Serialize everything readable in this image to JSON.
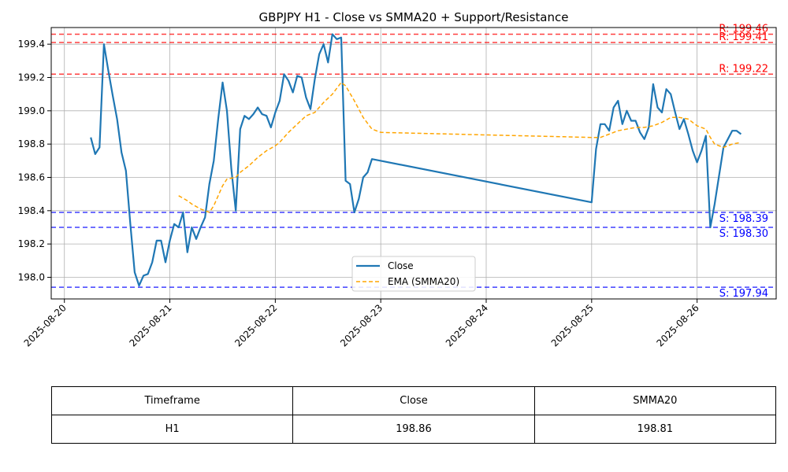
{
  "chart_data": {
    "type": "line",
    "title": "GBPJPY H1 - Close vs SMMA20 + Support/Resistance",
    "xlabel": "",
    "ylabel": "",
    "xlim": [
      "2025-08-19 21:00",
      "2025-08-26 18:00"
    ],
    "ylim": [
      197.87,
      199.5
    ],
    "x_ticks": [
      "2025-08-20",
      "2025-08-21",
      "2025-08-22",
      "2025-08-23",
      "2025-08-24",
      "2025-08-25",
      "2025-08-26"
    ],
    "y_ticks": [
      "198.0",
      "198.2",
      "198.4",
      "198.6",
      "198.8",
      "199.0",
      "199.2",
      "199.4"
    ],
    "grid": true,
    "legend_position": "lower-center",
    "series": [
      {
        "name": "Close",
        "color": "#1f77b4",
        "style": "solid",
        "points": [
          [
            "2025-08-20 06:00",
            198.84
          ],
          [
            "2025-08-20 07:00",
            198.74
          ],
          [
            "2025-08-20 08:00",
            198.78
          ],
          [
            "2025-08-20 09:00",
            199.4
          ],
          [
            "2025-08-20 10:00",
            199.24
          ],
          [
            "2025-08-20 11:00",
            199.09
          ],
          [
            "2025-08-20 12:00",
            198.95
          ],
          [
            "2025-08-20 13:00",
            198.75
          ],
          [
            "2025-08-20 14:00",
            198.64
          ],
          [
            "2025-08-20 15:00",
            198.32
          ],
          [
            "2025-08-20 16:00",
            198.03
          ],
          [
            "2025-08-20 17:00",
            197.95
          ],
          [
            "2025-08-20 18:00",
            198.01
          ],
          [
            "2025-08-20 19:00",
            198.02
          ],
          [
            "2025-08-20 20:00",
            198.09
          ],
          [
            "2025-08-20 21:00",
            198.22
          ],
          [
            "2025-08-20 22:00",
            198.22
          ],
          [
            "2025-08-20 23:00",
            198.09
          ],
          [
            "2025-08-21 00:00",
            198.22
          ],
          [
            "2025-08-21 01:00",
            198.32
          ],
          [
            "2025-08-21 02:00",
            198.3
          ],
          [
            "2025-08-21 03:00",
            198.39
          ],
          [
            "2025-08-21 04:00",
            198.15
          ],
          [
            "2025-08-21 05:00",
            198.3
          ],
          [
            "2025-08-21 06:00",
            198.23
          ],
          [
            "2025-08-21 07:00",
            198.3
          ],
          [
            "2025-08-21 08:00",
            198.36
          ],
          [
            "2025-08-21 09:00",
            198.56
          ],
          [
            "2025-08-21 10:00",
            198.7
          ],
          [
            "2025-08-21 11:00",
            198.95
          ],
          [
            "2025-08-21 12:00",
            199.17
          ],
          [
            "2025-08-21 13:00",
            199.0
          ],
          [
            "2025-08-21 14:00",
            198.65
          ],
          [
            "2025-08-21 15:00",
            198.4
          ],
          [
            "2025-08-21 16:00",
            198.89
          ],
          [
            "2025-08-21 17:00",
            198.97
          ],
          [
            "2025-08-21 18:00",
            198.95
          ],
          [
            "2025-08-21 19:00",
            198.98
          ],
          [
            "2025-08-21 20:00",
            199.02
          ],
          [
            "2025-08-21 21:00",
            198.98
          ],
          [
            "2025-08-21 22:00",
            198.97
          ],
          [
            "2025-08-21 23:00",
            198.9
          ],
          [
            "2025-08-22 00:00",
            198.99
          ],
          [
            "2025-08-22 01:00",
            199.06
          ],
          [
            "2025-08-22 02:00",
            199.22
          ],
          [
            "2025-08-22 03:00",
            199.18
          ],
          [
            "2025-08-22 04:00",
            199.11
          ],
          [
            "2025-08-22 05:00",
            199.21
          ],
          [
            "2025-08-22 06:00",
            199.2
          ],
          [
            "2025-08-22 07:00",
            199.08
          ],
          [
            "2025-08-22 08:00",
            199.01
          ],
          [
            "2025-08-22 09:00",
            199.19
          ],
          [
            "2025-08-22 10:00",
            199.34
          ],
          [
            "2025-08-22 11:00",
            199.4
          ],
          [
            "2025-08-22 12:00",
            199.29
          ],
          [
            "2025-08-22 13:00",
            199.46
          ],
          [
            "2025-08-22 14:00",
            199.43
          ],
          [
            "2025-08-22 15:00",
            199.44
          ],
          [
            "2025-08-22 16:00",
            198.58
          ],
          [
            "2025-08-22 17:00",
            198.56
          ],
          [
            "2025-08-22 18:00",
            198.39
          ],
          [
            "2025-08-22 19:00",
            198.47
          ],
          [
            "2025-08-22 20:00",
            198.6
          ],
          [
            "2025-08-22 21:00",
            198.63
          ],
          [
            "2025-08-22 22:00",
            198.71
          ],
          [
            "2025-08-25 00:00",
            198.45
          ],
          [
            "2025-08-25 01:00",
            198.77
          ],
          [
            "2025-08-25 02:00",
            198.92
          ],
          [
            "2025-08-25 03:00",
            198.92
          ],
          [
            "2025-08-25 04:00",
            198.88
          ],
          [
            "2025-08-25 05:00",
            199.02
          ],
          [
            "2025-08-25 06:00",
            199.06
          ],
          [
            "2025-08-25 07:00",
            198.92
          ],
          [
            "2025-08-25 08:00",
            199.0
          ],
          [
            "2025-08-25 09:00",
            198.94
          ],
          [
            "2025-08-25 10:00",
            198.94
          ],
          [
            "2025-08-25 11:00",
            198.87
          ],
          [
            "2025-08-25 12:00",
            198.83
          ],
          [
            "2025-08-25 13:00",
            198.9
          ],
          [
            "2025-08-25 14:00",
            199.16
          ],
          [
            "2025-08-25 15:00",
            199.02
          ],
          [
            "2025-08-25 16:00",
            198.99
          ],
          [
            "2025-08-25 17:00",
            199.13
          ],
          [
            "2025-08-25 18:00",
            199.1
          ],
          [
            "2025-08-25 19:00",
            198.99
          ],
          [
            "2025-08-25 20:00",
            198.89
          ],
          [
            "2025-08-25 21:00",
            198.95
          ],
          [
            "2025-08-25 22:00",
            198.86
          ],
          [
            "2025-08-25 23:00",
            198.76
          ],
          [
            "2025-08-26 00:00",
            198.69
          ],
          [
            "2025-08-26 01:00",
            198.76
          ],
          [
            "2025-08-26 02:00",
            198.85
          ],
          [
            "2025-08-26 03:00",
            198.3
          ],
          [
            "2025-08-26 04:00",
            198.44
          ],
          [
            "2025-08-26 05:00",
            198.61
          ],
          [
            "2025-08-26 06:00",
            198.78
          ],
          [
            "2025-08-26 07:00",
            198.83
          ],
          [
            "2025-08-26 08:00",
            198.88
          ],
          [
            "2025-08-26 09:00",
            198.88
          ],
          [
            "2025-08-26 10:00",
            198.86
          ]
        ]
      },
      {
        "name": "EMA (SMMA20)",
        "color": "#ffa500",
        "style": "dashed",
        "points": [
          [
            "2025-08-21 02:00",
            198.49
          ],
          [
            "2025-08-21 04:00",
            198.46
          ],
          [
            "2025-08-21 05:00",
            198.44
          ],
          [
            "2025-08-21 07:00",
            198.41
          ],
          [
            "2025-08-21 09:00",
            198.39
          ],
          [
            "2025-08-21 10:00",
            198.43
          ],
          [
            "2025-08-21 11:00",
            198.49
          ],
          [
            "2025-08-21 12:00",
            198.55
          ],
          [
            "2025-08-21 13:00",
            198.59
          ],
          [
            "2025-08-21 15:00",
            198.6
          ],
          [
            "2025-08-21 16:00",
            198.63
          ],
          [
            "2025-08-21 18:00",
            198.67
          ],
          [
            "2025-08-21 20:00",
            198.72
          ],
          [
            "2025-08-21 22:00",
            198.76
          ],
          [
            "2025-08-22 00:00",
            198.79
          ],
          [
            "2025-08-22 01:00",
            198.81
          ],
          [
            "2025-08-22 03:00",
            198.87
          ],
          [
            "2025-08-22 05:00",
            198.92
          ],
          [
            "2025-08-22 07:00",
            198.97
          ],
          [
            "2025-08-22 09:00",
            198.99
          ],
          [
            "2025-08-22 11:00",
            199.05
          ],
          [
            "2025-08-22 13:00",
            199.1
          ],
          [
            "2025-08-22 15:00",
            199.17
          ],
          [
            "2025-08-22 16:00",
            199.15
          ],
          [
            "2025-08-22 18:00",
            199.06
          ],
          [
            "2025-08-22 20:00",
            198.96
          ],
          [
            "2025-08-22 22:00",
            198.89
          ],
          [
            "2025-08-23 00:00",
            198.87
          ],
          [
            "2025-08-25 00:00",
            198.84
          ],
          [
            "2025-08-25 02:00",
            198.84
          ],
          [
            "2025-08-25 04:00",
            198.86
          ],
          [
            "2025-08-25 06:00",
            198.88
          ],
          [
            "2025-08-25 08:00",
            198.89
          ],
          [
            "2025-08-25 10:00",
            198.9
          ],
          [
            "2025-08-25 12:00",
            198.9
          ],
          [
            "2025-08-25 14:00",
            198.91
          ],
          [
            "2025-08-25 16:00",
            198.93
          ],
          [
            "2025-08-25 18:00",
            198.96
          ],
          [
            "2025-08-25 20:00",
            198.96
          ],
          [
            "2025-08-25 22:00",
            198.95
          ],
          [
            "2025-08-26 00:00",
            198.91
          ],
          [
            "2025-08-26 02:00",
            198.89
          ],
          [
            "2025-08-26 03:00",
            198.84
          ],
          [
            "2025-08-26 04:00",
            198.8
          ],
          [
            "2025-08-26 06:00",
            198.78
          ],
          [
            "2025-08-26 08:00",
            198.8
          ],
          [
            "2025-08-26 10:00",
            198.81
          ]
        ]
      }
    ],
    "resistance_levels": [
      {
        "value": 199.46,
        "label": "R: 199.46"
      },
      {
        "value": 199.41,
        "label": "R: 199.41"
      },
      {
        "value": 199.22,
        "label": "R: 199.22"
      }
    ],
    "support_levels": [
      {
        "value": 198.39,
        "label": "S: 198.39"
      },
      {
        "value": 198.3,
        "label": "S: 198.30"
      },
      {
        "value": 197.94,
        "label": "S: 197.94"
      }
    ],
    "colors": {
      "resistance": "#ff0000",
      "support": "#0000ff",
      "grid": "#b0b0b0"
    }
  },
  "table": {
    "headers": [
      "Timeframe",
      "Close",
      "SMMA20"
    ],
    "rows": [
      [
        "H1",
        "198.86",
        "198.81"
      ]
    ]
  }
}
